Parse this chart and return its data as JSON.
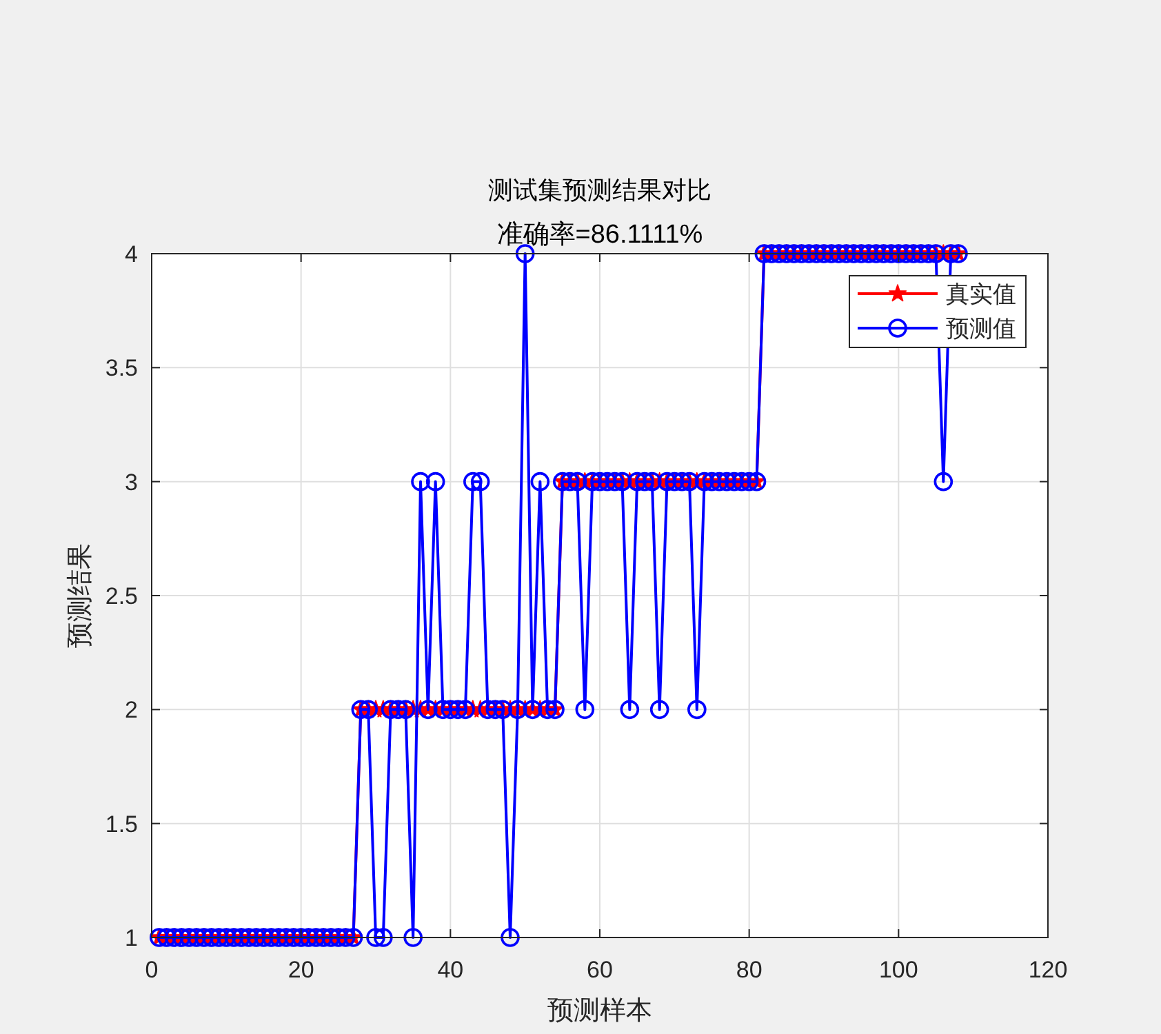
{
  "chart_data": {
    "type": "line",
    "title": "测试集预测结果对比",
    "subtitle": "准确率=86.1111%",
    "xlabel": "预测样本",
    "ylabel": "预测结果",
    "x": [
      1,
      2,
      3,
      4,
      5,
      6,
      7,
      8,
      9,
      10,
      11,
      12,
      13,
      14,
      15,
      16,
      17,
      18,
      19,
      20,
      21,
      22,
      23,
      24,
      25,
      26,
      27,
      28,
      29,
      30,
      31,
      32,
      33,
      34,
      35,
      36,
      37,
      38,
      39,
      40,
      41,
      42,
      43,
      44,
      45,
      46,
      47,
      48,
      49,
      50,
      51,
      52,
      53,
      54,
      55,
      56,
      57,
      58,
      59,
      60,
      61,
      62,
      63,
      64,
      65,
      66,
      67,
      68,
      69,
      70,
      71,
      72,
      73,
      74,
      75,
      76,
      77,
      78,
      79,
      80,
      81,
      82,
      83,
      84,
      85,
      86,
      87,
      88,
      89,
      90,
      91,
      92,
      93,
      94,
      95,
      96,
      97,
      98,
      99,
      100,
      101,
      102,
      103,
      104,
      105,
      106,
      107,
      108
    ],
    "series": [
      {
        "name": "真实值",
        "color": "#ff0000",
        "marker": "star",
        "values": [
          1,
          1,
          1,
          1,
          1,
          1,
          1,
          1,
          1,
          1,
          1,
          1,
          1,
          1,
          1,
          1,
          1,
          1,
          1,
          1,
          1,
          1,
          1,
          1,
          1,
          1,
          1,
          2,
          2,
          2,
          2,
          2,
          2,
          2,
          2,
          2,
          2,
          2,
          2,
          2,
          2,
          2,
          2,
          2,
          2,
          2,
          2,
          2,
          2,
          2,
          2,
          2,
          2,
          2,
          3,
          3,
          3,
          3,
          3,
          3,
          3,
          3,
          3,
          3,
          3,
          3,
          3,
          3,
          3,
          3,
          3,
          3,
          3,
          3,
          3,
          3,
          3,
          3,
          3,
          3,
          3,
          4,
          4,
          4,
          4,
          4,
          4,
          4,
          4,
          4,
          4,
          4,
          4,
          4,
          4,
          4,
          4,
          4,
          4,
          4,
          4,
          4,
          4,
          4,
          4,
          4,
          4,
          4
        ]
      },
      {
        "name": "预测值",
        "color": "#0000ff",
        "marker": "circle",
        "values": [
          1,
          1,
          1,
          1,
          1,
          1,
          1,
          1,
          1,
          1,
          1,
          1,
          1,
          1,
          1,
          1,
          1,
          1,
          1,
          1,
          1,
          1,
          1,
          1,
          1,
          1,
          1,
          2,
          2,
          1,
          1,
          2,
          2,
          2,
          1,
          3,
          2,
          3,
          2,
          2,
          2,
          2,
          3,
          3,
          2,
          2,
          2,
          1,
          2,
          4,
          2,
          3,
          2,
          2,
          3,
          3,
          3,
          2,
          3,
          3,
          3,
          3,
          3,
          2,
          3,
          3,
          3,
          2,
          3,
          3,
          3,
          3,
          2,
          3,
          3,
          3,
          3,
          3,
          3,
          3,
          3,
          4,
          4,
          4,
          4,
          4,
          4,
          4,
          4,
          4,
          4,
          4,
          4,
          4,
          4,
          4,
          4,
          4,
          4,
          4,
          4,
          4,
          4,
          4,
          4,
          3,
          4,
          4
        ]
      }
    ],
    "xlim": [
      0,
      120
    ],
    "ylim": [
      1,
      4
    ],
    "xticks": [
      0,
      20,
      40,
      60,
      80,
      100,
      120
    ],
    "yticks": [
      1,
      1.5,
      2,
      2.5,
      3,
      3.5,
      4
    ],
    "grid": true,
    "legend": "top right",
    "line_style": "solid"
  }
}
